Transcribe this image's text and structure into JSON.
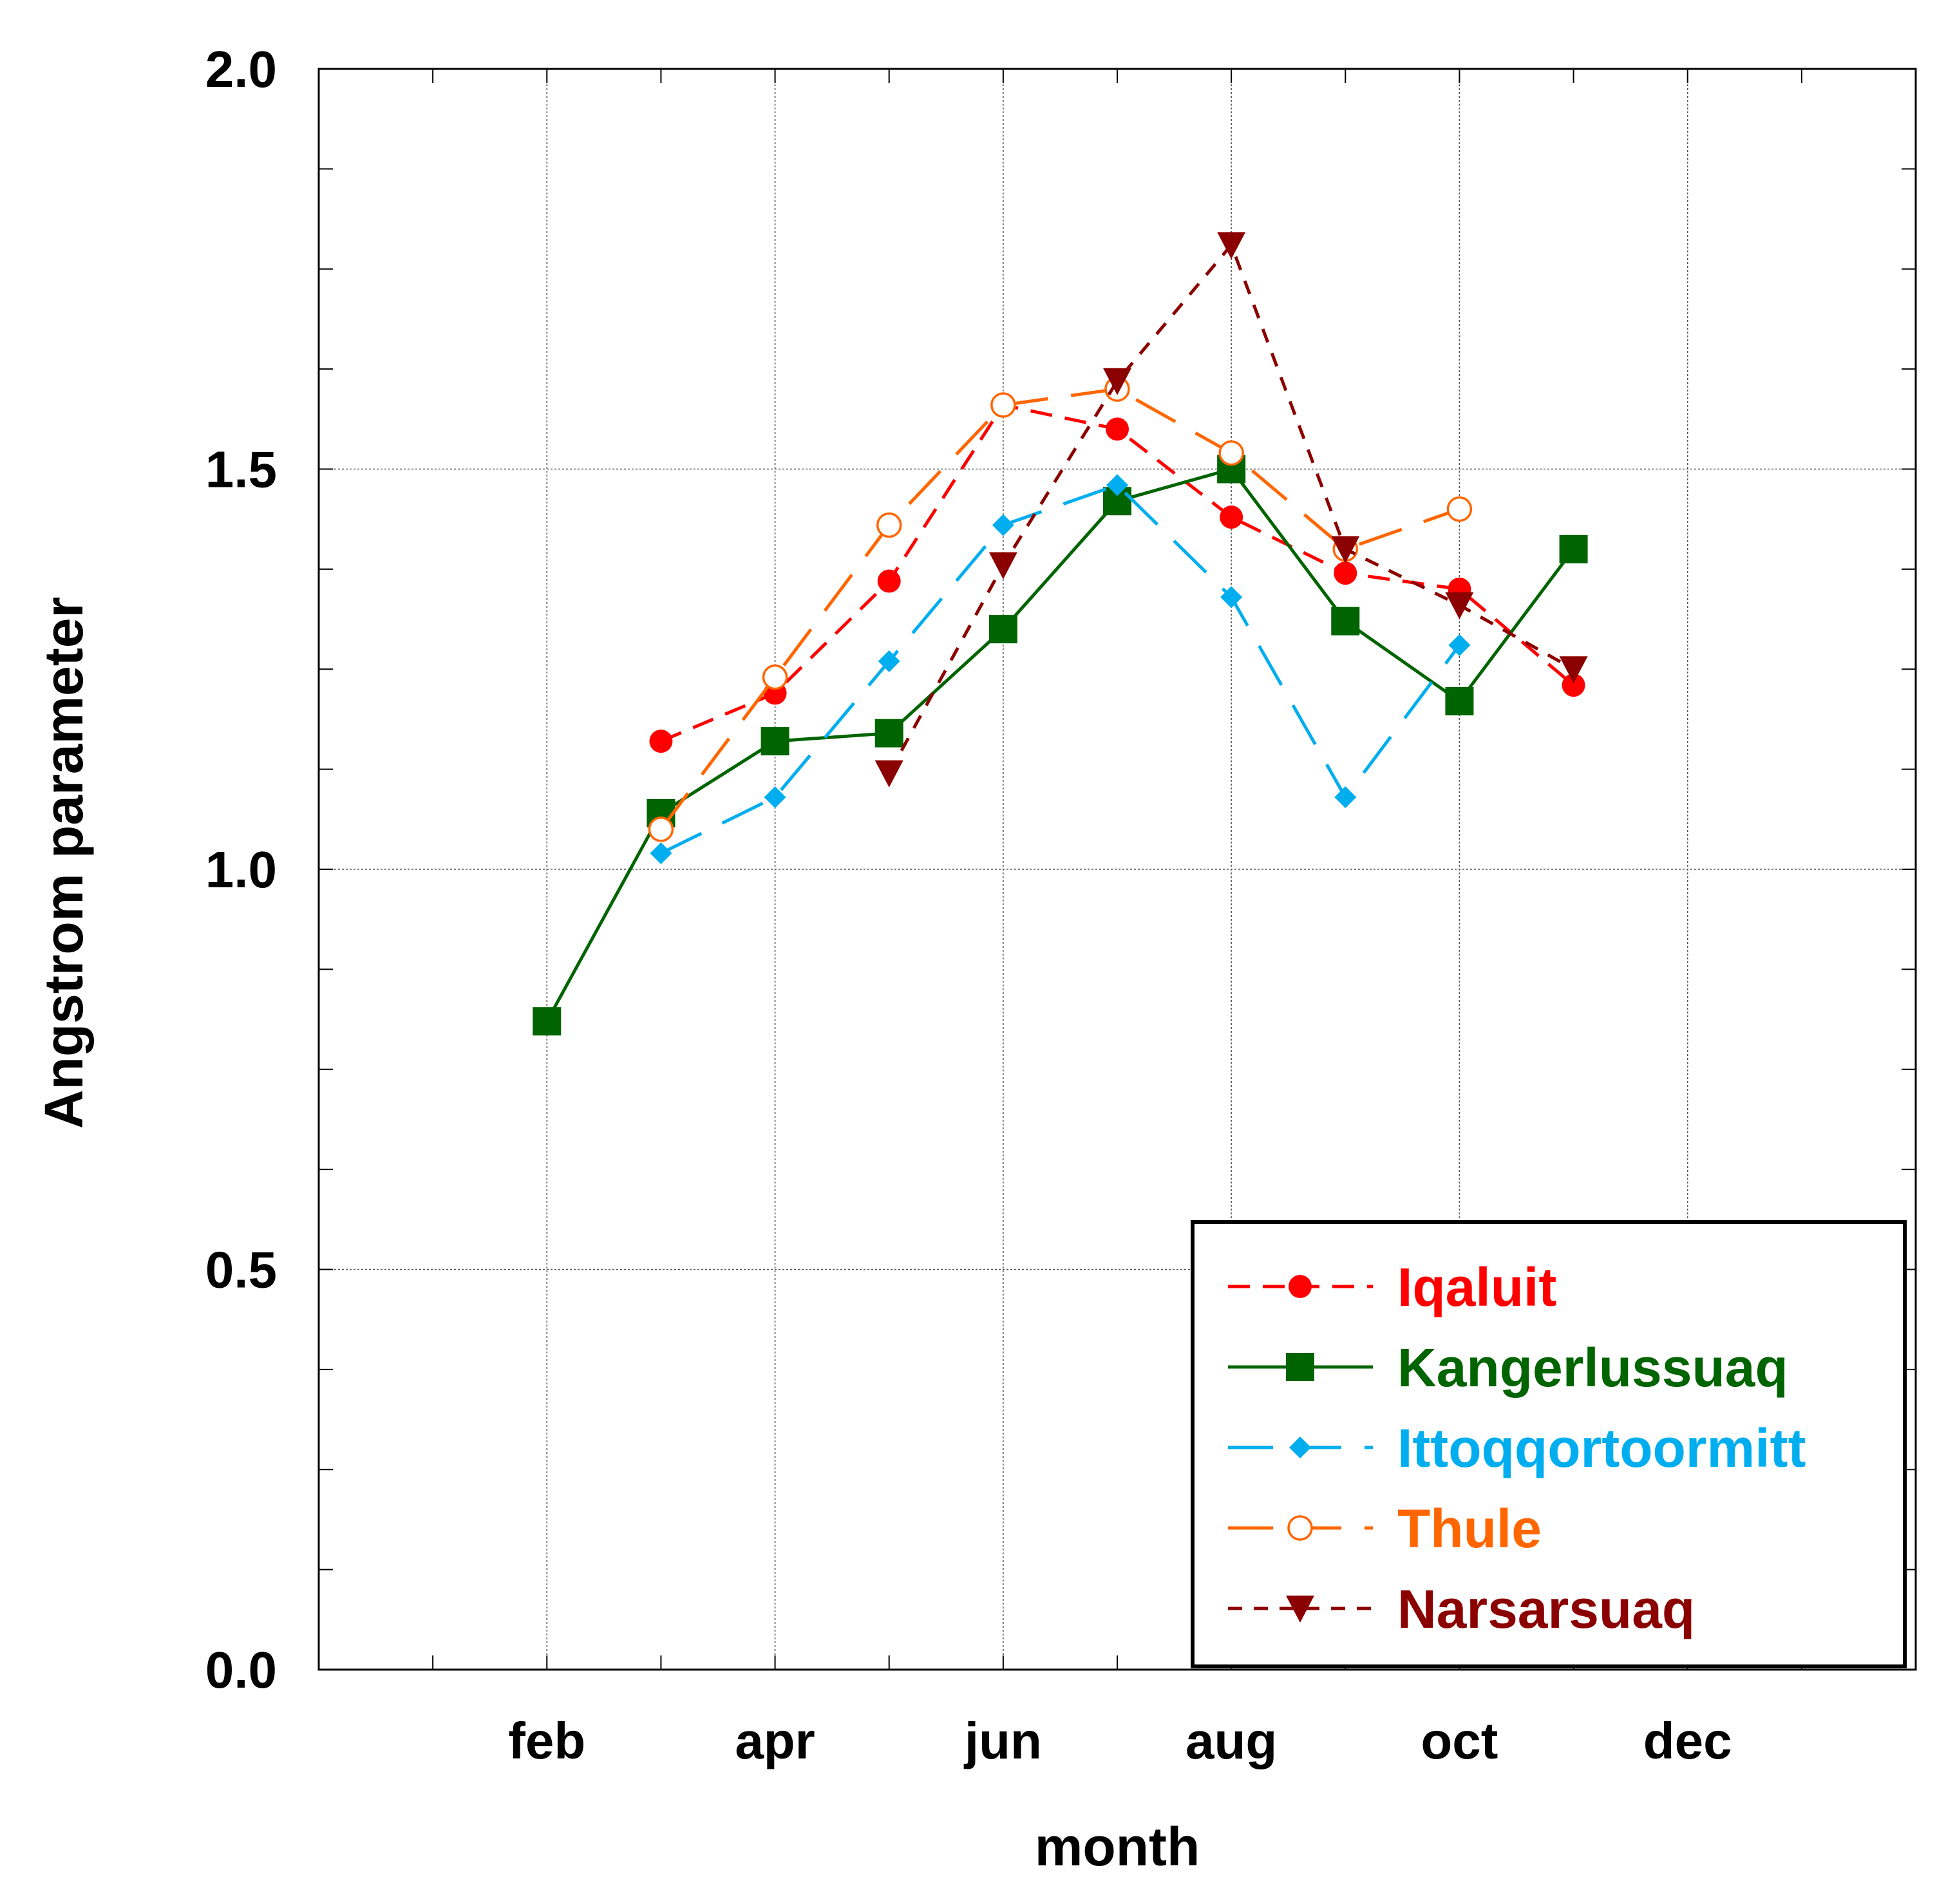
{
  "chart_data": {
    "type": "line",
    "xlabel": "month",
    "ylabel": "Angstrom parameter",
    "x_tick_labels": [
      {
        "month": 2,
        "label": "feb"
      },
      {
        "month": 4,
        "label": "apr"
      },
      {
        "month": 6,
        "label": "jun"
      },
      {
        "month": 8,
        "label": "aug"
      },
      {
        "month": 10,
        "label": "oct"
      },
      {
        "month": 12,
        "label": "dec"
      }
    ],
    "y_tick_labels": [
      "0.0",
      "0.5",
      "1.0",
      "1.5",
      "2.0"
    ],
    "xlim": [
      0,
      14
    ],
    "ylim": [
      0,
      2
    ],
    "grid": true,
    "legend": "bottom-right",
    "series": [
      {
        "name": "Iqaluit",
        "color": "#ff0000",
        "marker": "filled-circle",
        "line": "dashed-short",
        "x": [
          3,
          4,
          5,
          6,
          7,
          8,
          9,
          10,
          11
        ],
        "y": [
          1.16,
          1.22,
          1.36,
          1.58,
          1.55,
          1.44,
          1.37,
          1.35,
          1.23
        ]
      },
      {
        "name": "Kangerlussuaq",
        "color": "#006400",
        "marker": "filled-square",
        "line": "solid",
        "x": [
          2,
          3,
          4,
          5,
          6,
          7,
          8,
          9,
          10,
          11
        ],
        "y": [
          0.81,
          1.07,
          1.16,
          1.17,
          1.3,
          1.46,
          1.5,
          1.31,
          1.21,
          1.4
        ]
      },
      {
        "name": "Ittoqqortoormitt",
        "color": "#00aeef",
        "marker": "filled-diamond",
        "line": "dashed-long",
        "x": [
          3,
          4,
          5,
          6,
          7,
          8,
          9,
          10
        ],
        "y": [
          1.02,
          1.09,
          1.26,
          1.43,
          1.48,
          1.34,
          1.09,
          1.28
        ]
      },
      {
        "name": "Thule",
        "color": "#ff6600",
        "marker": "open-circle",
        "line": "dashed-long",
        "x": [
          3,
          4,
          5,
          6,
          7,
          8,
          9,
          10
        ],
        "y": [
          1.05,
          1.24,
          1.43,
          1.58,
          1.6,
          1.52,
          1.4,
          1.45
        ]
      },
      {
        "name": "Narsarsuaq",
        "color": "#8b0000",
        "marker": "filled-triangle-down",
        "line": "dashed-medium",
        "x": [
          5,
          6,
          7,
          8,
          9,
          10,
          11
        ],
        "y": [
          1.12,
          1.38,
          1.61,
          1.78,
          1.4,
          1.33,
          1.25
        ]
      }
    ]
  }
}
